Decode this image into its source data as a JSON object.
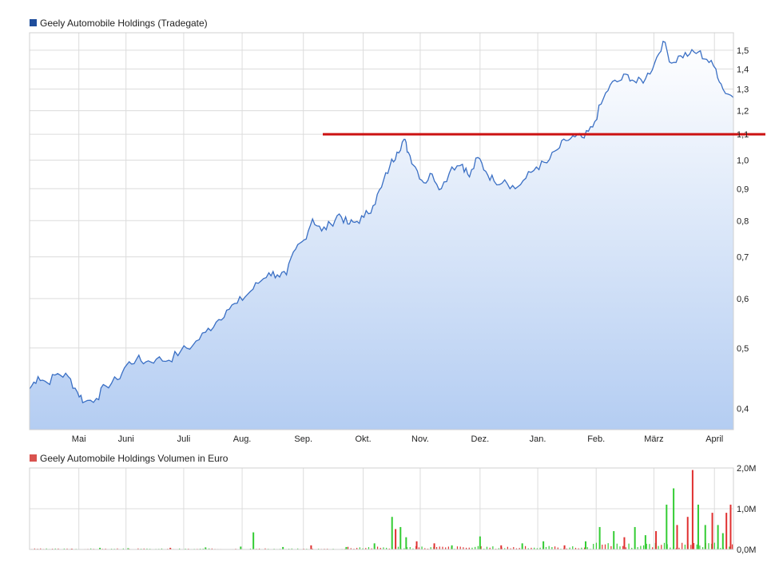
{
  "chart_data": [
    {
      "type": "area",
      "title": "Geely Automobile Holdings (Tradegate)",
      "legend_color": "#1f4e9c",
      "line_color": "#3a6fc4",
      "y_scale": "log",
      "ylim": [
        0.37,
        1.6
      ],
      "y_ticks": [
        0.4,
        0.5,
        0.6,
        0.7,
        0.8,
        0.9,
        1.0,
        1.1,
        1.2,
        1.3,
        1.4,
        1.5
      ],
      "y_tick_labels": [
        "0,4",
        "0,5",
        "0,6",
        "0,7",
        "0,8",
        "0,9",
        "1,0",
        "1,1",
        "1,2",
        "1,3",
        "1,4",
        "1,5"
      ],
      "x_ticks": [
        {
          "label": "Mai",
          "t": 0.07
        },
        {
          "label": "Juni",
          "t": 0.137
        },
        {
          "label": "Juli",
          "t": 0.219
        },
        {
          "label": "Aug.",
          "t": 0.302
        },
        {
          "label": "Sep.",
          "t": 0.389
        },
        {
          "label": "Okt.",
          "t": 0.474
        },
        {
          "label": "Nov.",
          "t": 0.555
        },
        {
          "label": "Dez.",
          "t": 0.64
        },
        {
          "label": "Jan.",
          "t": 0.722
        },
        {
          "label": "Feb.",
          "t": 0.805
        },
        {
          "label": "März",
          "t": 0.887
        },
        {
          "label": "April",
          "t": 0.973
        }
      ],
      "series": [
        {
          "name": "Geely Automobile Holdings (Tradegate)",
          "points": [
            [
              0.0,
              0.43
            ],
            [
              0.012,
              0.45
            ],
            [
              0.025,
              0.44
            ],
            [
              0.04,
              0.455
            ],
            [
              0.055,
              0.45
            ],
            [
              0.068,
              0.425
            ],
            [
              0.078,
              0.41
            ],
            [
              0.095,
              0.415
            ],
            [
              0.108,
              0.435
            ],
            [
              0.125,
              0.445
            ],
            [
              0.138,
              0.47
            ],
            [
              0.152,
              0.48
            ],
            [
              0.165,
              0.475
            ],
            [
              0.18,
              0.48
            ],
            [
              0.198,
              0.478
            ],
            [
              0.215,
              0.495
            ],
            [
              0.232,
              0.505
            ],
            [
              0.25,
              0.53
            ],
            [
              0.265,
              0.55
            ],
            [
              0.28,
              0.575
            ],
            [
              0.295,
              0.59
            ],
            [
              0.31,
              0.61
            ],
            [
              0.325,
              0.635
            ],
            [
              0.34,
              0.66
            ],
            [
              0.352,
              0.655
            ],
            [
              0.365,
              0.655
            ],
            [
              0.378,
              0.72
            ],
            [
              0.39,
              0.745
            ],
            [
              0.402,
              0.805
            ],
            [
              0.415,
              0.77
            ],
            [
              0.428,
              0.79
            ],
            [
              0.44,
              0.82
            ],
            [
              0.452,
              0.79
            ],
            [
              0.462,
              0.795
            ],
            [
              0.475,
              0.81
            ],
            [
              0.488,
              0.845
            ],
            [
              0.5,
              0.905
            ],
            [
              0.512,
              0.98
            ],
            [
              0.522,
              1.03
            ],
            [
              0.532,
              1.08
            ],
            [
              0.538,
              1.03
            ],
            [
              0.548,
              0.975
            ],
            [
              0.56,
              0.92
            ],
            [
              0.572,
              0.95
            ],
            [
              0.585,
              0.9
            ],
            [
              0.6,
              0.975
            ],
            [
              0.615,
              0.985
            ],
            [
              0.625,
              0.94
            ],
            [
              0.637,
              1.01
            ],
            [
              0.648,
              0.96
            ],
            [
              0.66,
              0.925
            ],
            [
              0.675,
              0.93
            ],
            [
              0.69,
              0.9
            ],
            [
              0.705,
              0.935
            ],
            [
              0.72,
              0.975
            ],
            [
              0.735,
              0.99
            ],
            [
              0.75,
              1.04
            ],
            [
              0.762,
              1.075
            ],
            [
              0.775,
              1.09
            ],
            [
              0.788,
              1.085
            ],
            [
              0.8,
              1.13
            ],
            [
              0.812,
              1.23
            ],
            [
              0.825,
              1.32
            ],
            [
              0.838,
              1.34
            ],
            [
              0.85,
              1.37
            ],
            [
              0.862,
              1.33
            ],
            [
              0.875,
              1.35
            ],
            [
              0.888,
              1.43
            ],
            [
              0.9,
              1.55
            ],
            [
              0.912,
              1.43
            ],
            [
              0.925,
              1.47
            ],
            [
              0.938,
              1.48
            ],
            [
              0.95,
              1.49
            ],
            [
              0.962,
              1.45
            ],
            [
              0.975,
              1.4
            ],
            [
              0.985,
              1.3
            ],
            [
              1.0,
              1.26
            ]
          ]
        }
      ],
      "reference_line": {
        "value": 1.1,
        "color": "#cc1111"
      }
    },
    {
      "type": "bar",
      "title": "Geely Automobile Holdings Volumen in Euro",
      "legend_color": "#d9534f",
      "up_color": "#33cc33",
      "down_color": "#e03030",
      "ylim": [
        0,
        2.0
      ],
      "y_ticks": [
        0,
        1.0,
        2.0
      ],
      "y_tick_labels": [
        "0,0M",
        "1,0M",
        "2,0M"
      ],
      "bars": [
        {
          "t": 0.06,
          "v": 0.02,
          "up": false
        },
        {
          "t": 0.1,
          "v": 0.04,
          "up": true
        },
        {
          "t": 0.14,
          "v": 0.03,
          "up": true
        },
        {
          "t": 0.2,
          "v": 0.04,
          "up": false
        },
        {
          "t": 0.25,
          "v": 0.05,
          "up": true
        },
        {
          "t": 0.3,
          "v": 0.07,
          "up": true
        },
        {
          "t": 0.318,
          "v": 0.42,
          "up": true
        },
        {
          "t": 0.36,
          "v": 0.06,
          "up": true
        },
        {
          "t": 0.4,
          "v": 0.1,
          "up": false
        },
        {
          "t": 0.45,
          "v": 0.06,
          "up": true
        },
        {
          "t": 0.49,
          "v": 0.15,
          "up": true
        },
        {
          "t": 0.515,
          "v": 0.8,
          "up": true
        },
        {
          "t": 0.52,
          "v": 0.5,
          "up": false
        },
        {
          "t": 0.527,
          "v": 0.55,
          "up": true
        },
        {
          "t": 0.535,
          "v": 0.3,
          "up": true
        },
        {
          "t": 0.55,
          "v": 0.2,
          "up": false
        },
        {
          "t": 0.575,
          "v": 0.15,
          "up": false
        },
        {
          "t": 0.6,
          "v": 0.1,
          "up": true
        },
        {
          "t": 0.64,
          "v": 0.32,
          "up": true
        },
        {
          "t": 0.67,
          "v": 0.1,
          "up": false
        },
        {
          "t": 0.7,
          "v": 0.15,
          "up": true
        },
        {
          "t": 0.73,
          "v": 0.2,
          "up": true
        },
        {
          "t": 0.76,
          "v": 0.1,
          "up": false
        },
        {
          "t": 0.79,
          "v": 0.2,
          "up": true
        },
        {
          "t": 0.81,
          "v": 0.55,
          "up": true
        },
        {
          "t": 0.83,
          "v": 0.45,
          "up": true
        },
        {
          "t": 0.845,
          "v": 0.3,
          "up": false
        },
        {
          "t": 0.86,
          "v": 0.55,
          "up": true
        },
        {
          "t": 0.875,
          "v": 0.35,
          "up": true
        },
        {
          "t": 0.89,
          "v": 0.45,
          "up": false
        },
        {
          "t": 0.905,
          "v": 1.1,
          "up": true
        },
        {
          "t": 0.915,
          "v": 1.5,
          "up": true
        },
        {
          "t": 0.92,
          "v": 0.6,
          "up": false
        },
        {
          "t": 0.935,
          "v": 0.8,
          "up": false
        },
        {
          "t": 0.942,
          "v": 1.95,
          "up": false
        },
        {
          "t": 0.95,
          "v": 1.1,
          "up": true
        },
        {
          "t": 0.96,
          "v": 0.6,
          "up": true
        },
        {
          "t": 0.97,
          "v": 0.9,
          "up": false
        },
        {
          "t": 0.978,
          "v": 0.6,
          "up": true
        },
        {
          "t": 0.985,
          "v": 0.4,
          "up": true
        },
        {
          "t": 0.99,
          "v": 0.9,
          "up": false
        },
        {
          "t": 0.996,
          "v": 1.1,
          "up": false
        }
      ]
    }
  ]
}
